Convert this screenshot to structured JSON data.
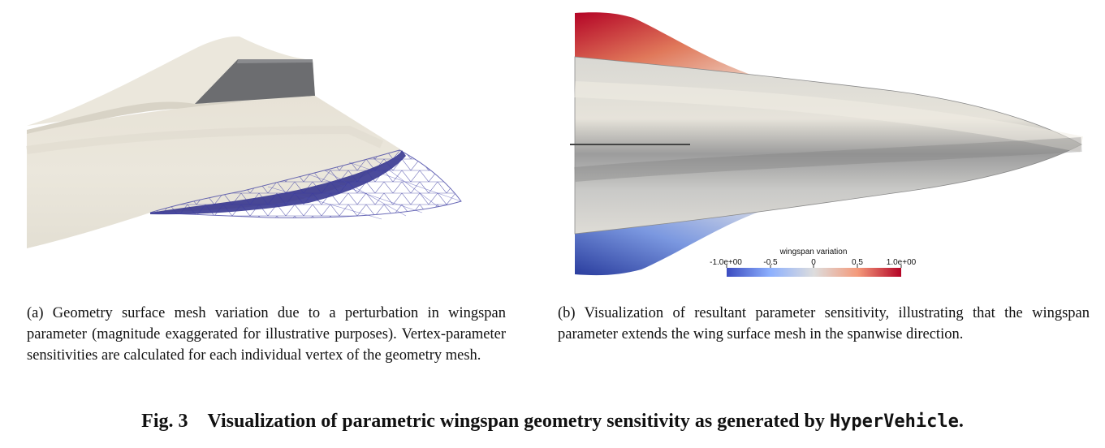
{
  "figure": {
    "label": "Fig. 3",
    "title": "Visualization of parametric wingspan geometry sensitivity as generated by ",
    "tool": "HyperVehicle",
    "end": "."
  },
  "subfigure_a": {
    "caption": "(a) Geometry surface mesh variation due to a perturbation in wingspan parameter (magnitude exaggerated for illustrative purposes). Vertex-parameter sensitivities are calculated for each individual vertex of the geometry mesh."
  },
  "subfigure_b": {
    "caption": "(b) Visualization of resultant parameter sensitivity, illustrating that the wingspan parameter extends the wing surface mesh in the spanwise direction.",
    "colorbar": {
      "title": "wingspan variation",
      "ticks": [
        "-1.0e+00",
        "-0.5",
        "0",
        "0.5",
        "1.0e+00"
      ],
      "colors": {
        "low": "#3b4cc0",
        "mid": "#dddddd",
        "high": "#b40426"
      }
    }
  }
}
